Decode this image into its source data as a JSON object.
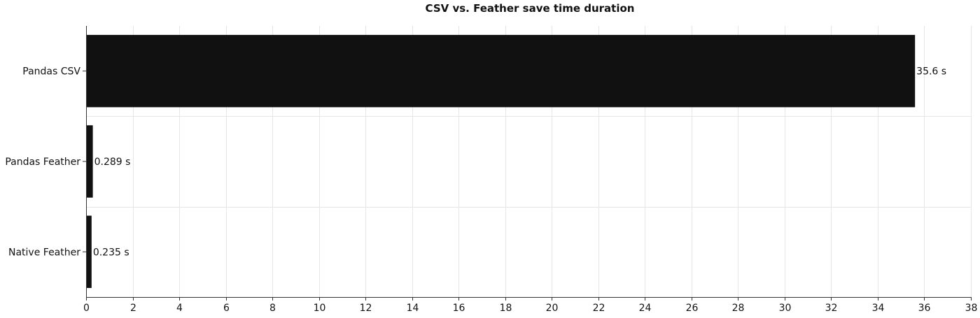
{
  "chart_data": {
    "type": "bar",
    "orientation": "horizontal",
    "title": "CSV vs. Feather save time duration",
    "categories": [
      "Pandas CSV",
      "Pandas Feather",
      "Native Feather"
    ],
    "values": [
      35.6,
      0.289,
      0.235
    ],
    "value_labels": [
      "35.6 s",
      "0.289 s",
      "0.235 s"
    ],
    "xlim": [
      0,
      38
    ],
    "x_ticks": [
      0,
      2,
      4,
      6,
      8,
      10,
      12,
      14,
      16,
      18,
      20,
      22,
      24,
      26,
      28,
      30,
      32,
      34,
      36,
      38
    ],
    "bar_color": "#111111",
    "grid": true,
    "xlabel": "",
    "ylabel": ""
  }
}
